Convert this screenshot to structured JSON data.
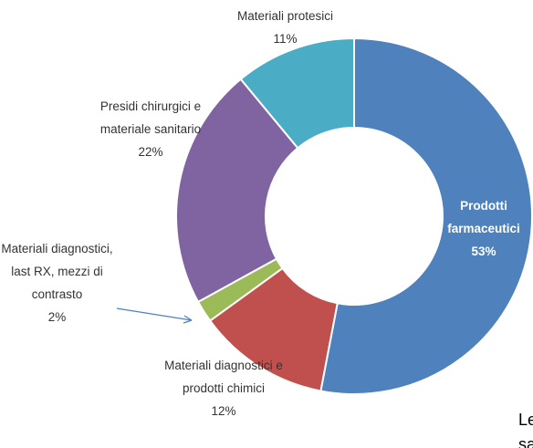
{
  "chart_data": {
    "type": "donut",
    "categories": [
      "Prodotti farmaceutici",
      "Materiali diagnostici e prodotti chimici",
      "Materiali diagnostici, last RX, mezzi di contrasto",
      "Presidi chirurgici e materiale sanitario",
      "Materiali protesici"
    ],
    "values": [
      53,
      12,
      2,
      22,
      11
    ],
    "value_labels": [
      "53%",
      "12%",
      "2%",
      "22%",
      "11%"
    ],
    "colors": [
      "#4f81bd",
      "#c0504d",
      "#9bbb59",
      "#8064a2",
      "#4bacc6"
    ]
  },
  "text": [
    "Le prin",
    "sanita"
  ]
}
